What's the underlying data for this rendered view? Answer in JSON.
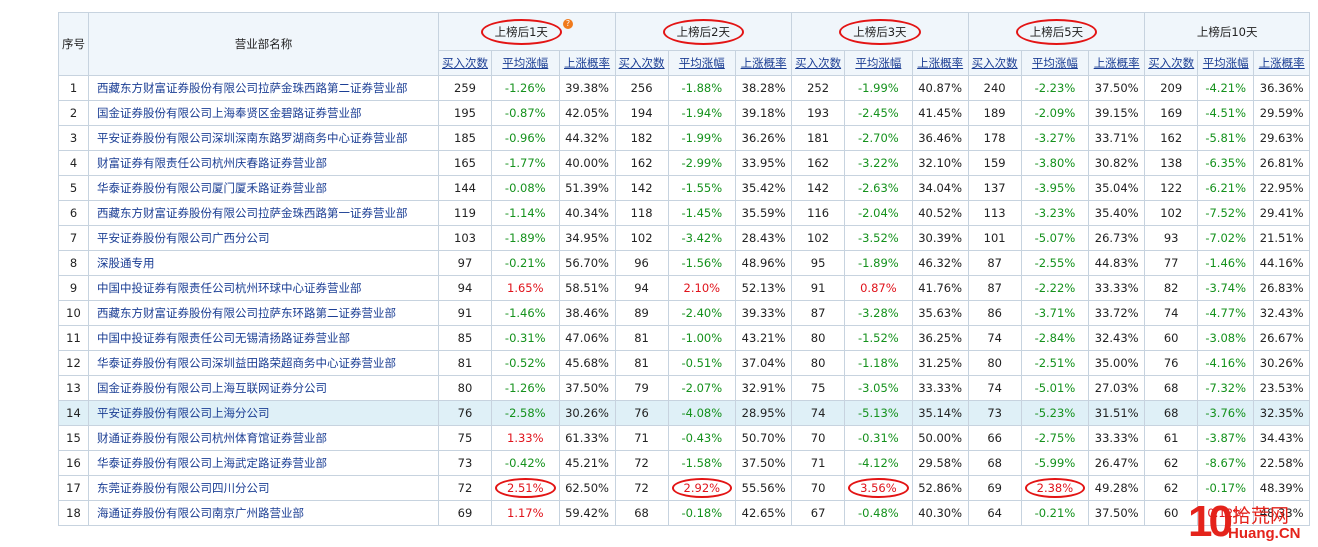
{
  "header": {
    "seq_label": "序号",
    "name_label": "营业部名称",
    "periods": [
      {
        "label": "上榜后1天"
      },
      {
        "label": "上榜后2天"
      },
      {
        "label": "上榜后3天"
      },
      {
        "label": "上榜后5天"
      },
      {
        "label": "上榜后10天"
      }
    ],
    "sub_labels": [
      "买入次数",
      "平均涨幅",
      "上涨概率"
    ]
  },
  "rows": [
    {
      "seq": "1",
      "name": "西藏东方财富证券股份有限公司拉萨金珠西路第二证券营业部",
      "p": [
        [
          "259",
          "-1.26%",
          "39.38%"
        ],
        [
          "256",
          "-1.88%",
          "38.28%"
        ],
        [
          "252",
          "-1.99%",
          "40.87%"
        ],
        [
          "240",
          "-2.23%",
          "37.50%"
        ],
        [
          "209",
          "-4.21%",
          "36.36%"
        ]
      ]
    },
    {
      "seq": "2",
      "name": "国金证券股份有限公司上海奉贤区金碧路证券营业部",
      "p": [
        [
          "195",
          "-0.87%",
          "42.05%"
        ],
        [
          "194",
          "-1.94%",
          "39.18%"
        ],
        [
          "193",
          "-2.45%",
          "41.45%"
        ],
        [
          "189",
          "-2.09%",
          "39.15%"
        ],
        [
          "169",
          "-4.51%",
          "29.59%"
        ]
      ]
    },
    {
      "seq": "3",
      "name": "平安证券股份有限公司深圳深南东路罗湖商务中心证券营业部",
      "p": [
        [
          "185",
          "-0.96%",
          "44.32%"
        ],
        [
          "182",
          "-1.99%",
          "36.26%"
        ],
        [
          "181",
          "-2.70%",
          "36.46%"
        ],
        [
          "178",
          "-3.27%",
          "33.71%"
        ],
        [
          "162",
          "-5.81%",
          "29.63%"
        ]
      ]
    },
    {
      "seq": "4",
      "name": "财富证券有限责任公司杭州庆春路证券营业部",
      "p": [
        [
          "165",
          "-1.77%",
          "40.00%"
        ],
        [
          "162",
          "-2.99%",
          "33.95%"
        ],
        [
          "162",
          "-3.22%",
          "32.10%"
        ],
        [
          "159",
          "-3.80%",
          "30.82%"
        ],
        [
          "138",
          "-6.35%",
          "26.81%"
        ]
      ]
    },
    {
      "seq": "5",
      "name": "华泰证券股份有限公司厦门厦禾路证券营业部",
      "p": [
        [
          "144",
          "-0.08%",
          "51.39%"
        ],
        [
          "142",
          "-1.55%",
          "35.42%"
        ],
        [
          "142",
          "-2.63%",
          "34.04%"
        ],
        [
          "137",
          "-3.95%",
          "35.04%"
        ],
        [
          "122",
          "-6.21%",
          "22.95%"
        ]
      ]
    },
    {
      "seq": "6",
      "name": "西藏东方财富证券股份有限公司拉萨金珠西路第一证券营业部",
      "p": [
        [
          "119",
          "-1.14%",
          "40.34%"
        ],
        [
          "118",
          "-1.45%",
          "35.59%"
        ],
        [
          "116",
          "-2.04%",
          "40.52%"
        ],
        [
          "113",
          "-3.23%",
          "35.40%"
        ],
        [
          "102",
          "-7.52%",
          "29.41%"
        ]
      ]
    },
    {
      "seq": "7",
      "name": "平安证券股份有限公司广西分公司",
      "p": [
        [
          "103",
          "-1.89%",
          "34.95%"
        ],
        [
          "102",
          "-3.42%",
          "28.43%"
        ],
        [
          "102",
          "-3.52%",
          "30.39%"
        ],
        [
          "101",
          "-5.07%",
          "26.73%"
        ],
        [
          "93",
          "-7.02%",
          "21.51%"
        ]
      ]
    },
    {
      "seq": "8",
      "name": "深股通专用",
      "p": [
        [
          "97",
          "-0.21%",
          "56.70%"
        ],
        [
          "96",
          "-1.56%",
          "48.96%"
        ],
        [
          "95",
          "-1.89%",
          "46.32%"
        ],
        [
          "87",
          "-2.55%",
          "44.83%"
        ],
        [
          "77",
          "-1.46%",
          "44.16%"
        ]
      ]
    },
    {
      "seq": "9",
      "name": "中国中投证券有限责任公司杭州环球中心证券营业部",
      "p": [
        [
          "94",
          "1.65%",
          "58.51%"
        ],
        [
          "94",
          "2.10%",
          "52.13%"
        ],
        [
          "91",
          "0.87%",
          "41.76%"
        ],
        [
          "87",
          "-2.22%",
          "33.33%"
        ],
        [
          "82",
          "-3.74%",
          "26.83%"
        ]
      ]
    },
    {
      "seq": "10",
      "name": "西藏东方财富证券股份有限公司拉萨东环路第二证券营业部",
      "p": [
        [
          "91",
          "-1.46%",
          "38.46%"
        ],
        [
          "89",
          "-2.40%",
          "39.33%"
        ],
        [
          "87",
          "-3.28%",
          "35.63%"
        ],
        [
          "86",
          "-3.71%",
          "33.72%"
        ],
        [
          "74",
          "-4.77%",
          "32.43%"
        ]
      ]
    },
    {
      "seq": "11",
      "name": "中国中投证券有限责任公司无锡清扬路证券营业部",
      "p": [
        [
          "85",
          "-0.31%",
          "47.06%"
        ],
        [
          "81",
          "-1.00%",
          "43.21%"
        ],
        [
          "80",
          "-1.52%",
          "36.25%"
        ],
        [
          "74",
          "-2.84%",
          "32.43%"
        ],
        [
          "60",
          "-3.08%",
          "26.67%"
        ]
      ]
    },
    {
      "seq": "12",
      "name": "华泰证券股份有限公司深圳益田路荣超商务中心证券营业部",
      "p": [
        [
          "81",
          "-0.52%",
          "45.68%"
        ],
        [
          "81",
          "-0.51%",
          "37.04%"
        ],
        [
          "80",
          "-1.18%",
          "31.25%"
        ],
        [
          "80",
          "-2.51%",
          "35.00%"
        ],
        [
          "76",
          "-4.16%",
          "30.26%"
        ]
      ]
    },
    {
      "seq": "13",
      "name": "国金证券股份有限公司上海互联网证券分公司",
      "p": [
        [
          "80",
          "-1.26%",
          "37.50%"
        ],
        [
          "79",
          "-2.07%",
          "32.91%"
        ],
        [
          "75",
          "-3.05%",
          "33.33%"
        ],
        [
          "74",
          "-5.01%",
          "27.03%"
        ],
        [
          "68",
          "-7.32%",
          "23.53%"
        ]
      ]
    },
    {
      "seq": "14",
      "name": "平安证券股份有限公司上海分公司",
      "p": [
        [
          "76",
          "-2.58%",
          "30.26%"
        ],
        [
          "76",
          "-4.08%",
          "28.95%"
        ],
        [
          "74",
          "-5.13%",
          "35.14%"
        ],
        [
          "73",
          "-5.23%",
          "31.51%"
        ],
        [
          "68",
          "-3.76%",
          "32.35%"
        ]
      ]
    },
    {
      "seq": "15",
      "name": "财通证券股份有限公司杭州体育馆证券营业部",
      "p": [
        [
          "75",
          "1.33%",
          "61.33%"
        ],
        [
          "71",
          "-0.43%",
          "50.70%"
        ],
        [
          "70",
          "-0.31%",
          "50.00%"
        ],
        [
          "66",
          "-2.75%",
          "33.33%"
        ],
        [
          "61",
          "-3.87%",
          "34.43%"
        ]
      ]
    },
    {
      "seq": "16",
      "name": "华泰证券股份有限公司上海武定路证券营业部",
      "p": [
        [
          "73",
          "-0.42%",
          "45.21%"
        ],
        [
          "72",
          "-1.58%",
          "37.50%"
        ],
        [
          "71",
          "-4.12%",
          "29.58%"
        ],
        [
          "68",
          "-5.99%",
          "26.47%"
        ],
        [
          "62",
          "-8.67%",
          "22.58%"
        ]
      ]
    },
    {
      "seq": "17",
      "name": "东莞证券股份有限公司四川分公司",
      "p": [
        [
          "72",
          "2.51%",
          "62.50%"
        ],
        [
          "72",
          "2.92%",
          "55.56%"
        ],
        [
          "70",
          "3.56%",
          "52.86%"
        ],
        [
          "69",
          "2.38%",
          "49.28%"
        ],
        [
          "62",
          "-0.17%",
          "48.39%"
        ]
      ]
    },
    {
      "seq": "18",
      "name": "海通证券股份有限公司南京广州路营业部",
      "p": [
        [
          "69",
          "1.17%",
          "59.42%"
        ],
        [
          "68",
          "-0.18%",
          "42.65%"
        ],
        [
          "67",
          "-0.48%",
          "40.30%"
        ],
        [
          "64",
          "-0.21%",
          "37.50%"
        ],
        [
          "60",
          "0.12%",
          "48.33%"
        ]
      ]
    }
  ],
  "highlighted_row": 14,
  "colors": {
    "up": "#e0131b",
    "down": "#14911c",
    "link": "#1b3e94",
    "annotation": "#e31414"
  },
  "watermark": {
    "logo": "10",
    "cn": "拾荒网",
    "domain": "Huang.CN"
  }
}
